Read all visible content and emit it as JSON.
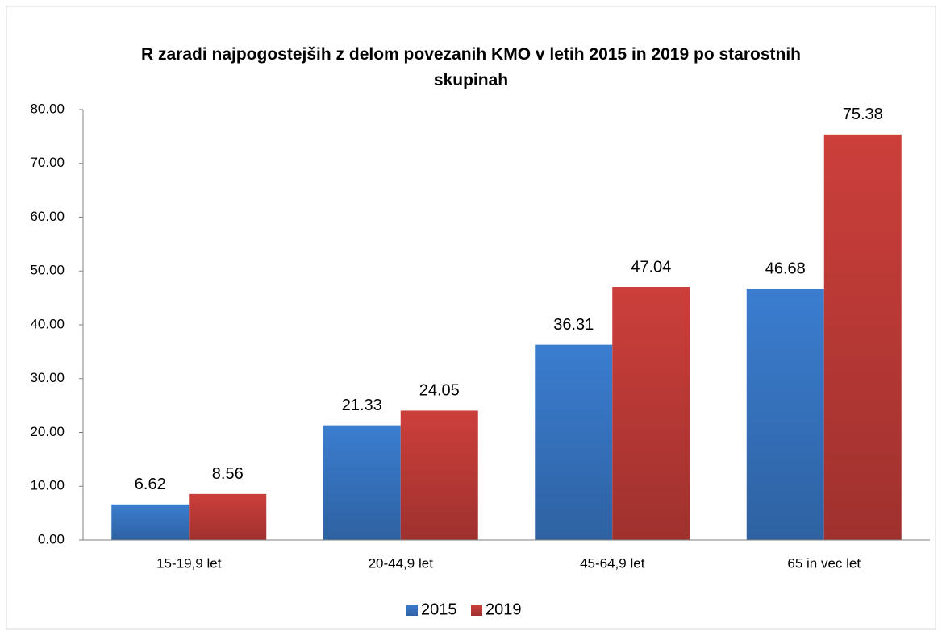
{
  "chart_data": {
    "type": "bar",
    "title": "R zaradi najpogostejših z delom povezanih KMO v letih 2015 in 2019 po starostnih skupinah",
    "categories": [
      "15-19,9 let",
      "20-44,9 let",
      "45-64,9 let",
      "65 in vec let"
    ],
    "series": [
      {
        "name": "2015",
        "color": "#3b7dd0",
        "values": [
          6.62,
          21.33,
          36.31,
          46.68
        ]
      },
      {
        "name": "2019",
        "color": "#cc3f3b",
        "values": [
          8.56,
          24.05,
          47.04,
          75.38
        ]
      }
    ],
    "ylim": [
      0,
      80
    ],
    "yticks": [
      {
        "value": 0,
        "label": "0.00"
      },
      {
        "value": 10,
        "label": "10.00"
      },
      {
        "value": 20,
        "label": "20.00"
      },
      {
        "value": 30,
        "label": "30.00"
      },
      {
        "value": 40,
        "label": "40.00"
      },
      {
        "value": 50,
        "label": "50.00"
      },
      {
        "value": 60,
        "label": "60.00"
      },
      {
        "value": 70,
        "label": "70.00"
      },
      {
        "value": 80,
        "label": "80.00"
      }
    ],
    "grid": false,
    "legend": "bottom"
  }
}
